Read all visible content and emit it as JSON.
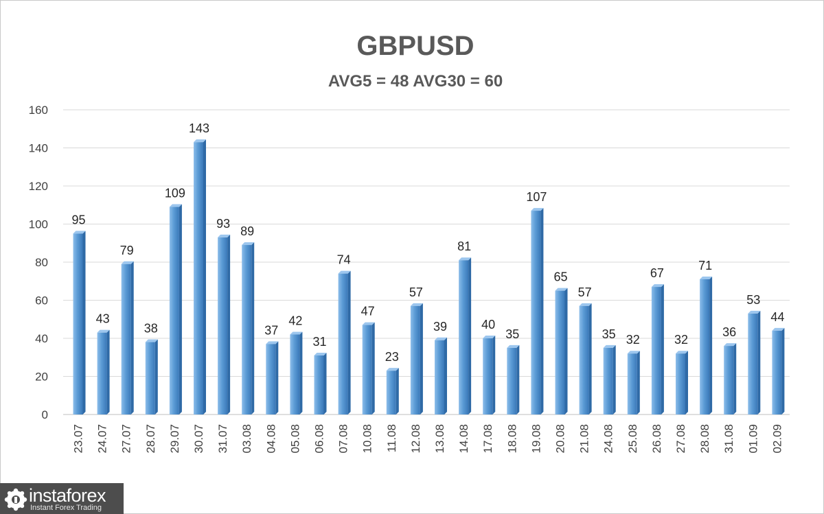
{
  "chart_data": {
    "type": "bar",
    "title": "GBPUSD",
    "subtitle": "AVG5 = 48 AVG30 = 60",
    "xlabel": "",
    "ylabel": "",
    "ylim": [
      0,
      160
    ],
    "yticks": [
      0,
      20,
      40,
      60,
      80,
      100,
      120,
      140,
      160
    ],
    "grid": true,
    "legend": "none",
    "categories": [
      "23.07",
      "24.07",
      "27.07",
      "28.07",
      "29.07",
      "30.07",
      "31.07",
      "03.08",
      "04.08",
      "05.08",
      "06.08",
      "07.08",
      "10.08",
      "11.08",
      "12.08",
      "13.08",
      "14.08",
      "17.08",
      "18.08",
      "19.08",
      "20.08",
      "21.08",
      "24.08",
      "25.08",
      "26.08",
      "27.08",
      "28.08",
      "31.08",
      "01.09",
      "02.09"
    ],
    "values": [
      95,
      43,
      79,
      38,
      109,
      143,
      93,
      89,
      37,
      42,
      31,
      74,
      47,
      23,
      57,
      39,
      81,
      40,
      35,
      107,
      65,
      57,
      35,
      32,
      67,
      32,
      71,
      36,
      53,
      44
    ],
    "bar_color": "#5b9bd5"
  },
  "logo": {
    "name": "instaforex",
    "tagline": "Instant Forex Trading"
  }
}
